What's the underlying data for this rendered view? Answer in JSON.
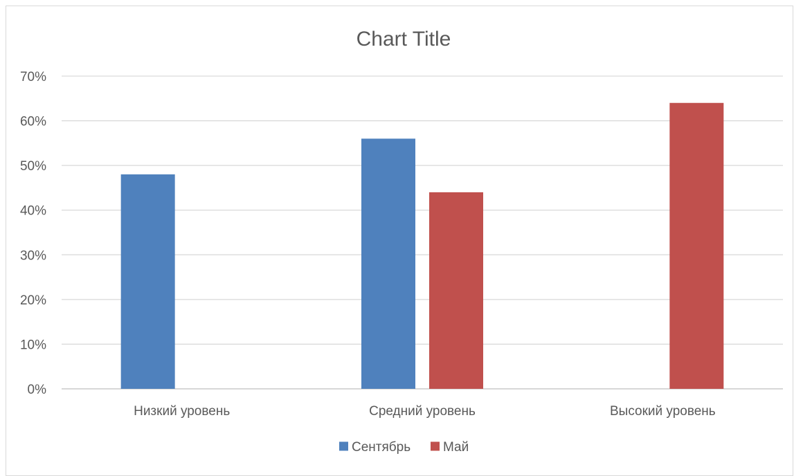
{
  "chart_data": {
    "type": "bar",
    "title": "Chart Title",
    "categories": [
      "Низкий уровень",
      "Средний уровень",
      "Высокий уровень"
    ],
    "series": [
      {
        "name": "Сентябрь",
        "values": [
          0.48,
          0.56,
          null
        ],
        "color": "#4f81bd"
      },
      {
        "name": "Май",
        "values": [
          null,
          0.44,
          0.64
        ],
        "color": "#c0504d"
      }
    ],
    "ylim": [
      0,
      0.7
    ],
    "yticks": [
      "0%",
      "10%",
      "20%",
      "30%",
      "40%",
      "50%",
      "60%",
      "70%"
    ],
    "grid": true,
    "legend_position": "bottom"
  }
}
